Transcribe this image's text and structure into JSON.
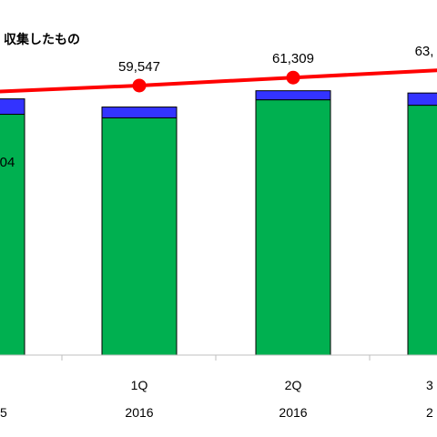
{
  "chart_data": {
    "type": "bar",
    "title": "収集したもの",
    "categories": [
      {
        "q": "",
        "year": "5"
      },
      {
        "q": "1Q",
        "year": "2016"
      },
      {
        "q": "2Q",
        "year": "2016"
      },
      {
        "q": "3",
        "year": "2"
      }
    ],
    "series": [
      {
        "color": "#00b050",
        "values": [
          53200,
          52400,
          56400,
          55200
        ]
      },
      {
        "color": "#3333ff",
        "values": [
          3400,
          2400,
          2000,
          2700
        ]
      }
    ],
    "line": {
      "color": "#ff0000",
      "values": [
        58100,
        59547,
        61309,
        63000
      ],
      "labels": [
        "04",
        "59,547",
        "61,309",
        "63,"
      ]
    },
    "ylim": [
      0,
      70000
    ]
  }
}
